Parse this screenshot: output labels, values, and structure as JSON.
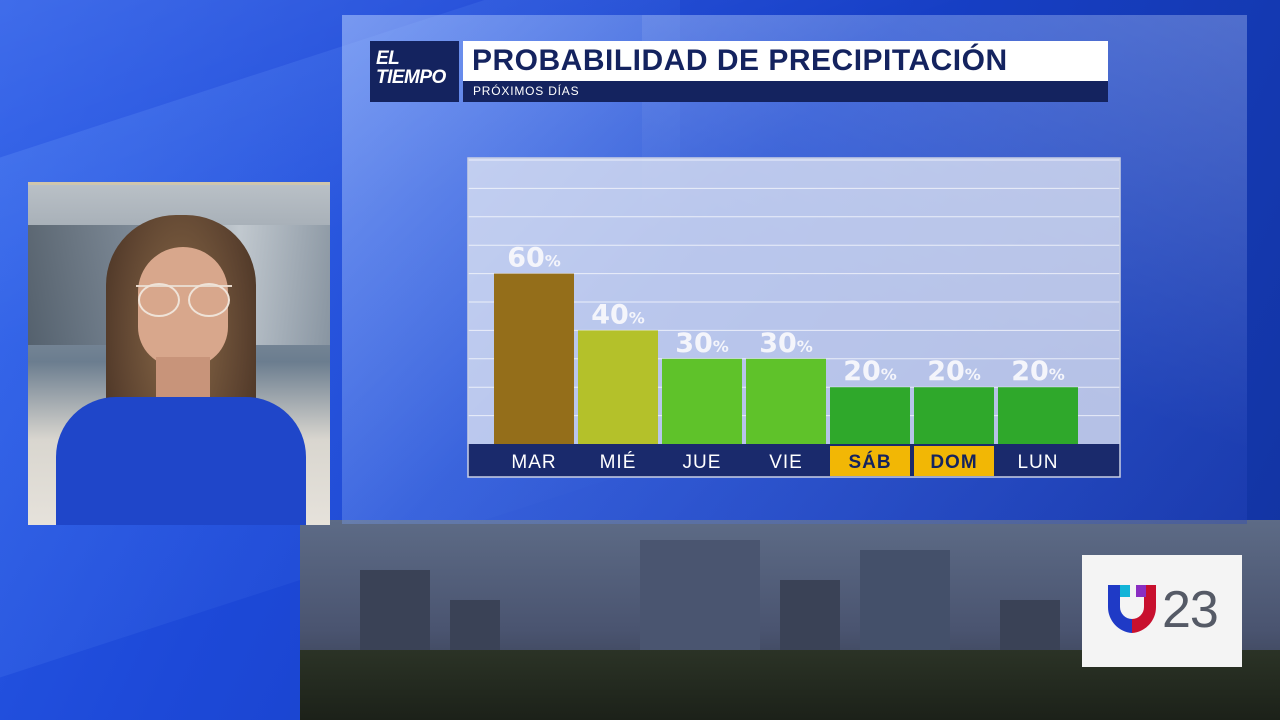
{
  "header": {
    "logo_line1": "EL",
    "logo_line2": "TIEMPO",
    "title": "PROBABILIDAD DE PRECIPITACIÓN",
    "subtitle": "PRÓXIMOS DÍAS"
  },
  "station": {
    "number": "23"
  },
  "chart_data": {
    "type": "bar",
    "title": "PROBABILIDAD DE PRECIPITACIÓN",
    "subtitle": "PRÓXIMOS DÍAS",
    "categories": [
      "MAR",
      "MIÉ",
      "JUE",
      "VIE",
      "SÁB",
      "DOM",
      "LUN"
    ],
    "values": [
      60,
      40,
      30,
      30,
      20,
      20,
      20
    ],
    "value_labels": [
      "60",
      "40",
      "30",
      "30",
      "20",
      "20",
      "20"
    ],
    "unit": "%",
    "ylim": [
      0,
      100
    ],
    "bar_colors": [
      "#946e1a",
      "#b4c12a",
      "#5fc22a",
      "#5fc22a",
      "#2fa82b",
      "#2fa82b",
      "#2fa82b"
    ],
    "weekend_categories": [
      "SÁB",
      "DOM"
    ],
    "label_colors": {
      "weekday_bg": "#1a2a6c",
      "weekend_bg": "#f2b705",
      "weekday_text": "#ffffff",
      "weekend_text": "#14235f"
    },
    "grid": true,
    "legend": "none"
  }
}
